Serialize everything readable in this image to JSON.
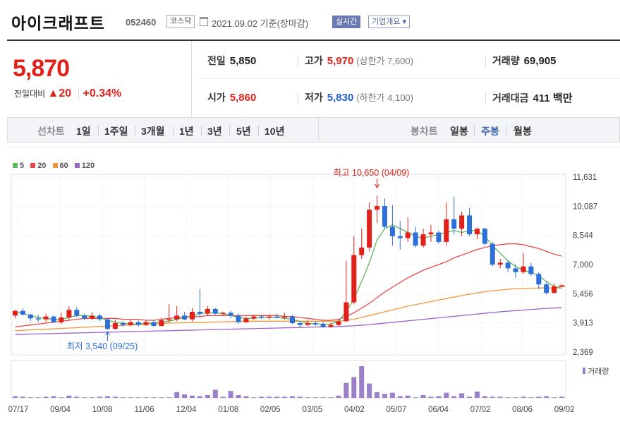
{
  "header": {
    "stock_name": "아이크래프트",
    "stock_code": "052460",
    "market": "코스닥",
    "date_text": "2021.09.02 기준(장마감)",
    "realtime_label": "실시간",
    "company_info_label": "기업개요 ▾"
  },
  "summary": {
    "price": "5,870",
    "change_label": "전일대비",
    "change_value": "▲20",
    "change_pct": "+0.34%",
    "prev_close_label": "전일",
    "prev_close": "5,850",
    "high_label": "고가",
    "high": "5,970",
    "upper_limit": "(상한가 7,600)",
    "volume_label": "거래량",
    "volume": "69,905",
    "open_label": "시가",
    "open": "5,860",
    "low_label": "저가",
    "low": "5,830",
    "lower_limit": "(하한가 4,100)",
    "amount_label": "거래대금",
    "amount": "411 백만"
  },
  "tabs": {
    "line_chart_label": "선차트",
    "periods": [
      "1일",
      "1주일",
      "3개월",
      "1년",
      "3년",
      "5년",
      "10년"
    ],
    "candle_chart_label": "봉차트",
    "candle_periods": [
      "일봉",
      "주봉",
      "월봉"
    ],
    "active_candle": "주봉"
  },
  "chart_data": {
    "type": "candlestick",
    "legend": [
      "5",
      "20",
      "60",
      "120"
    ],
    "colors": {
      "ma5": "#5cb85c",
      "ma20": "#e84a4a",
      "ma60": "#f0963c",
      "ma120": "#9b66c9",
      "up": "#e0201a",
      "down": "#2d6fd6",
      "volume": "#9b7fc9"
    },
    "y_ticks": [
      "11,631",
      "10,087",
      "8,544",
      "7,000",
      "5,456",
      "3,913",
      "2,369"
    ],
    "ylim": [
      2369,
      11631
    ],
    "x_labels": [
      "07/17",
      "09/04",
      "10/08",
      "11/06",
      "12/04",
      "01/08",
      "02/05",
      "03/05",
      "04/02",
      "05/07",
      "06/04",
      "07/02",
      "08/06",
      "09/02"
    ],
    "annotation_high": "최고 10,650 (04/09)",
    "annotation_low": "최저 3,540 (09/25)",
    "volume_label": "거래량",
    "candles": [
      [
        4300,
        4550,
        4600,
        4150
      ],
      [
        4550,
        4350,
        4700,
        4300
      ],
      [
        4350,
        4150,
        4400,
        4000
      ],
      [
        4150,
        4100,
        4350,
        3950
      ],
      [
        4100,
        4250,
        4400,
        3950
      ],
      [
        4250,
        3950,
        4300,
        3900
      ],
      [
        3950,
        4200,
        4450,
        3850
      ],
      [
        4200,
        4600,
        4800,
        4050
      ],
      [
        4600,
        4300,
        4750,
        4200
      ],
      [
        4300,
        4150,
        4400,
        4050
      ],
      [
        4150,
        4300,
        4500,
        4050
      ],
      [
        4300,
        4100,
        4400,
        4000
      ],
      [
        4100,
        3600,
        4150,
        3540
      ],
      [
        3600,
        3900,
        4100,
        3550
      ],
      [
        3900,
        3800,
        4000,
        3700
      ],
      [
        3800,
        3950,
        4100,
        3750
      ],
      [
        3950,
        3800,
        4050,
        3700
      ],
      [
        3800,
        3950,
        4050,
        3750
      ],
      [
        3950,
        3750,
        4050,
        3700
      ],
      [
        3750,
        4050,
        4200,
        3700
      ],
      [
        4050,
        4100,
        4900,
        3950
      ],
      [
        4100,
        4300,
        4800,
        4000
      ],
      [
        4300,
        4100,
        4500,
        4050
      ],
      [
        4100,
        4500,
        4700,
        4000
      ],
      [
        4500,
        4400,
        5700,
        4200
      ],
      [
        4400,
        4650,
        4800,
        4300
      ],
      [
        4650,
        4400,
        4700,
        4350
      ],
      [
        4400,
        4450,
        4500,
        4300
      ],
      [
        4450,
        4300,
        4550,
        4150
      ],
      [
        4300,
        3950,
        4400,
        3850
      ],
      [
        3950,
        4150,
        4250,
        3900
      ],
      [
        4150,
        4250,
        4350,
        4050
      ],
      [
        4250,
        4200,
        4350,
        4100
      ],
      [
        4200,
        4250,
        4350,
        4100
      ],
      [
        4250,
        4200,
        4400,
        4150
      ],
      [
        4200,
        4250,
        4450,
        4100
      ],
      [
        4250,
        3900,
        4350,
        3850
      ],
      [
        3900,
        3800,
        4000,
        3700
      ],
      [
        3800,
        3900,
        4050,
        3750
      ],
      [
        3900,
        3850,
        4000,
        3750
      ],
      [
        3850,
        3700,
        3950,
        3650
      ],
      [
        3700,
        3800,
        3900,
        3650
      ],
      [
        3800,
        4000,
        4100,
        3750
      ],
      [
        4000,
        5000,
        7200,
        3950
      ],
      [
        5000,
        7500,
        8500,
        4900
      ],
      [
        7500,
        7900,
        8900,
        7300
      ],
      [
        7900,
        9900,
        10300,
        7700
      ],
      [
        9900,
        10100,
        10650,
        9200
      ],
      [
        10100,
        9000,
        10500,
        8900
      ],
      [
        9000,
        8500,
        10150,
        8000
      ],
      [
        8500,
        8400,
        9300,
        7800
      ],
      [
        8400,
        8700,
        9500,
        8200
      ],
      [
        8700,
        8000,
        9000,
        7900
      ],
      [
        8000,
        8600,
        8900,
        7900
      ],
      [
        8600,
        8700,
        9100,
        8200
      ],
      [
        8700,
        8200,
        8800,
        8100
      ],
      [
        8200,
        9400,
        10300,
        8000
      ],
      [
        9400,
        8900,
        10600,
        8600
      ],
      [
        8900,
        9600,
        9800,
        8500
      ],
      [
        9600,
        8600,
        10000,
        8500
      ],
      [
        8600,
        8900,
        8950,
        8350
      ],
      [
        8900,
        8100,
        8950,
        8000
      ],
      [
        8100,
        7000,
        8200,
        6900
      ],
      [
        7000,
        7100,
        7300,
        6800
      ],
      [
        7100,
        6800,
        7200,
        6600
      ],
      [
        6800,
        6600,
        7000,
        6300
      ],
      [
        6600,
        6900,
        7600,
        6500
      ],
      [
        6900,
        6500,
        7100,
        6400
      ],
      [
        6500,
        5950,
        6600,
        5700
      ],
      [
        5950,
        5500,
        6100,
        5400
      ],
      [
        5500,
        5850,
        6000,
        5450
      ],
      [
        5850,
        5870,
        5970,
        5830
      ]
    ],
    "ma5": [
      4500,
      4400,
      4300,
      4200,
      4150,
      4100,
      4100,
      4200,
      4300,
      4300,
      4250,
      4200,
      4050,
      3950,
      3900,
      3850,
      3850,
      3900,
      3900,
      3950,
      4000,
      4100,
      4200,
      4300,
      4400,
      4450,
      4450,
      4400,
      4300,
      4200,
      4150,
      4150,
      4200,
      4200,
      4200,
      4150,
      4100,
      4000,
      3900,
      3850,
      3850,
      3850,
      4000,
      4500,
      5200,
      6100,
      7100,
      8300,
      8900,
      9100,
      8900,
      8700,
      8500,
      8400,
      8500,
      8600,
      8700,
      8800,
      8700,
      8800,
      8800,
      8500,
      8000,
      7600,
      7200,
      6900,
      6700,
      6600,
      6400,
      6100,
      5850,
      5750
    ],
    "ma20": [
      3700,
      3750,
      3800,
      3850,
      3900,
      3950,
      4000,
      4050,
      4100,
      4150,
      4150,
      4150,
      4150,
      4150,
      4100,
      4100,
      4100,
      4050,
      4050,
      4100,
      4150,
      4200,
      4200,
      4250,
      4250,
      4300,
      4300,
      4300,
      4300,
      4300,
      4300,
      4300,
      4300,
      4300,
      4300,
      4250,
      4250,
      4200,
      4150,
      4100,
      4050,
      4050,
      4100,
      4250,
      4450,
      4700,
      4950,
      5250,
      5550,
      5800,
      6050,
      6300,
      6500,
      6700,
      6850,
      7000,
      7150,
      7350,
      7500,
      7650,
      7800,
      7900,
      8000,
      8050,
      8100,
      8100,
      8050,
      7950,
      7850,
      7700,
      7550,
      7450
    ],
    "ma60": [
      3500,
      3520,
      3540,
      3560,
      3580,
      3600,
      3620,
      3640,
      3660,
      3680,
      3700,
      3720,
      3740,
      3760,
      3780,
      3800,
      3820,
      3840,
      3860,
      3880,
      3900,
      3910,
      3920,
      3930,
      3940,
      3950,
      3960,
      3970,
      3980,
      3990,
      4000,
      4000,
      4000,
      4000,
      4000,
      4000,
      4000,
      4000,
      4000,
      4000,
      4000,
      4000,
      4000,
      4050,
      4100,
      4200,
      4300,
      4400,
      4500,
      4600,
      4700,
      4800,
      4880,
      4960,
      5040,
      5120,
      5200,
      5280,
      5360,
      5430,
      5500,
      5560,
      5610,
      5650,
      5690,
      5720,
      5740,
      5750,
      5760,
      5760,
      5760,
      5760
    ],
    "ma120": [
      3300,
      3310,
      3320,
      3330,
      3340,
      3350,
      3360,
      3370,
      3380,
      3390,
      3400,
      3410,
      3420,
      3430,
      3440,
      3450,
      3460,
      3470,
      3480,
      3490,
      3500,
      3510,
      3520,
      3530,
      3540,
      3550,
      3560,
      3570,
      3580,
      3590,
      3600,
      3610,
      3620,
      3630,
      3640,
      3650,
      3660,
      3670,
      3680,
      3690,
      3700,
      3710,
      3720,
      3740,
      3760,
      3790,
      3820,
      3860,
      3900,
      3940,
      3980,
      4020,
      4060,
      4100,
      4140,
      4180,
      4220,
      4260,
      4300,
      4340,
      4380,
      4420,
      4460,
      4500,
      4530,
      4560,
      4590,
      4620,
      4650,
      4680,
      4700,
      4720
    ],
    "volumes": [
      3,
      2,
      1,
      1,
      2,
      3,
      1,
      4,
      2,
      1,
      1,
      2,
      3,
      2,
      1,
      1,
      1,
      1,
      1,
      1,
      1,
      10,
      6,
      4,
      3,
      5,
      14,
      2,
      12,
      5,
      3,
      1,
      2,
      2,
      2,
      2,
      3,
      2,
      1,
      1,
      1,
      1,
      4,
      26,
      36,
      55,
      25,
      10,
      7,
      9,
      3,
      4,
      1,
      5,
      2,
      3,
      9,
      3,
      8,
      2,
      11,
      3,
      2,
      2,
      1,
      1,
      2,
      1,
      2,
      3,
      1,
      2
    ]
  }
}
